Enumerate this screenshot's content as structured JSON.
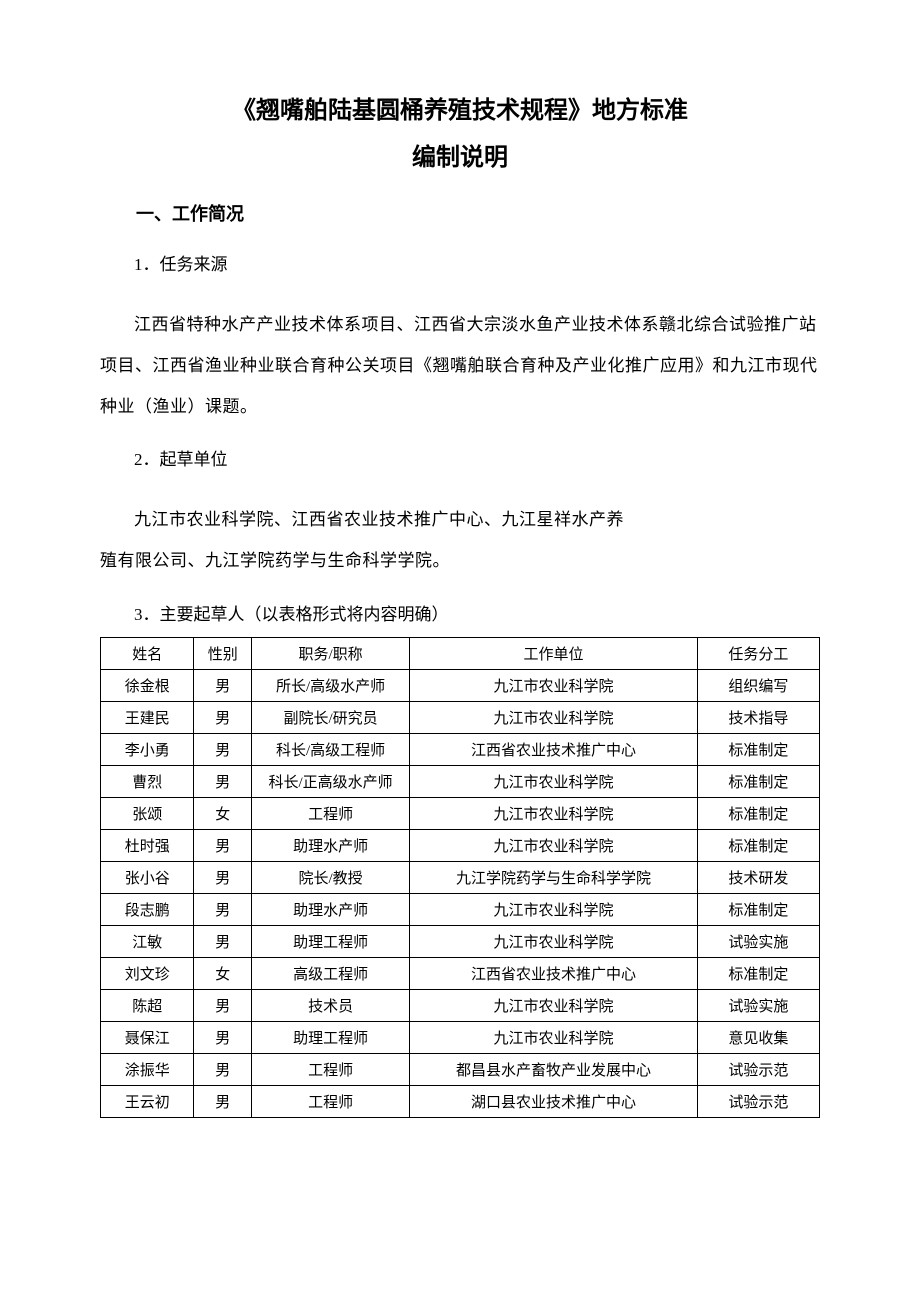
{
  "title": {
    "line1": "《翘嘴舶陆基圆桶养殖技术规程》地方标准",
    "line2": "编制说明"
  },
  "section1": {
    "heading": "一、工作简况",
    "sub1": {
      "label": "1．任务来源",
      "para": "江西省特种水产产业技术体系项目、江西省大宗淡水鱼产业技术体系赣北综合试验推广站项目、江西省渔业种业联合育种公关项目《翘嘴舶联合育种及产业化推广应用》和九江市现代种业（渔业）课题。"
    },
    "sub2": {
      "label": "2．起草单位",
      "para1": "九江市农业科学院、江西省农业技术推广中心、九江星祥水产养",
      "para2": "殖有限公司、九江学院药学与生命科学学院。"
    },
    "sub3": {
      "label": "3．主要起草人（以表格形式将内容明确）"
    }
  },
  "table": {
    "headers": {
      "name": "姓名",
      "gender": "性别",
      "title": "职务/职称",
      "unit": "工作单位",
      "role": "任务分工"
    },
    "rows": [
      {
        "name": "徐金根",
        "gender": "男",
        "title": "所长/高级水产师",
        "unit": "九江市农业科学院",
        "role": "组织编写"
      },
      {
        "name": "王建民",
        "gender": "男",
        "title": "副院长/研究员",
        "unit": "九江市农业科学院",
        "role": "技术指导"
      },
      {
        "name": "李小勇",
        "gender": "男",
        "title": "科长/高级工程师",
        "unit": "江西省农业技术推广中心",
        "role": "标准制定"
      },
      {
        "name": "曹烈",
        "gender": "男",
        "title": "科长/正高级水产师",
        "unit": "九江市农业科学院",
        "role": "标准制定"
      },
      {
        "name": "张颂",
        "gender": "女",
        "title": "工程师",
        "unit": "九江市农业科学院",
        "role": "标准制定"
      },
      {
        "name": "杜时强",
        "gender": "男",
        "title": "助理水产师",
        "unit": "九江市农业科学院",
        "role": "标准制定"
      },
      {
        "name": "张小谷",
        "gender": "男",
        "title": "院长/教授",
        "unit": "九江学院药学与生命科学学院",
        "role": "技术研发"
      },
      {
        "name": "段志鹏",
        "gender": "男",
        "title": "助理水产师",
        "unit": "九江市农业科学院",
        "role": "标准制定"
      },
      {
        "name": "江敏",
        "gender": "男",
        "title": "助理工程师",
        "unit": "九江市农业科学院",
        "role": "试验实施"
      },
      {
        "name": "刘文珍",
        "gender": "女",
        "title": "高级工程师",
        "unit": "江西省农业技术推广中心",
        "role": "标准制定"
      },
      {
        "name": "陈超",
        "gender": "男",
        "title": "技术员",
        "unit": "九江市农业科学院",
        "role": "试验实施"
      },
      {
        "name": "聂保江",
        "gender": "男",
        "title": "助理工程师",
        "unit": "九江市农业科学院",
        "role": "意见收集"
      },
      {
        "name": "涂振华",
        "gender": "男",
        "title": "工程师",
        "unit": "都昌县水产畜牧产业发展中心",
        "role": "试验示范"
      },
      {
        "name": "王云初",
        "gender": "男",
        "title": "工程师",
        "unit": "湖口县农业技术推广中心",
        "role": "试验示范"
      }
    ]
  }
}
